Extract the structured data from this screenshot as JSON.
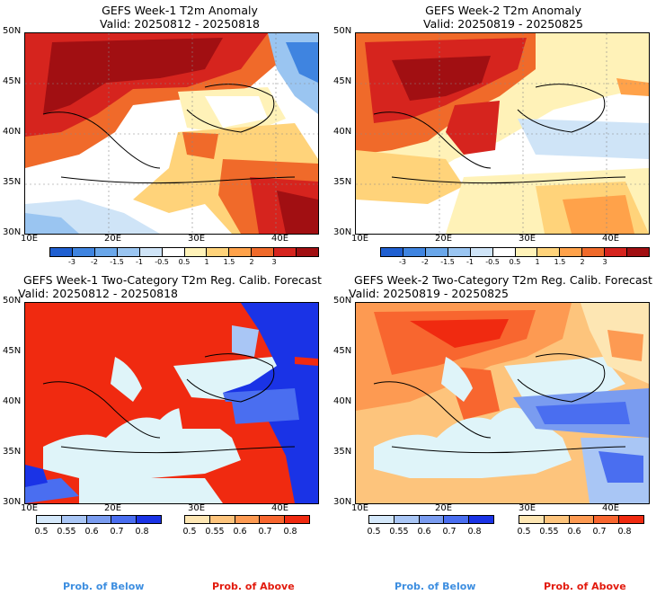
{
  "panels": [
    {
      "title": "GEFS Week-1 T2m Anomaly",
      "valid": "Valid: 20250812 - 20250818",
      "kind": "anom"
    },
    {
      "title": "GEFS Week-2 T2m Anomaly",
      "valid": "Valid: 20250819 - 20250825",
      "kind": "anom"
    },
    {
      "title": "GEFS Week-1 Two-Category T2m Reg. Calib. Forecast",
      "valid": "Valid: 20250812 - 20250818",
      "kind": "prob"
    },
    {
      "title": "GEFS Week-2 Two-Category T2m Reg. Calib. Forecast",
      "valid": "Valid: 20250819 - 20250825",
      "kind": "prob"
    }
  ],
  "lat_labels": [
    "50N",
    "45N",
    "40N",
    "35N",
    "30N"
  ],
  "lon_labels": [
    "10E",
    "20E",
    "30E",
    "40E"
  ],
  "anomaly_colorbar": {
    "ticks": [
      "-3",
      "-2",
      "-1.5",
      "-1",
      "-0.5",
      "0.5",
      "1",
      "1.5",
      "2",
      "3"
    ],
    "colors": [
      "#1f5fd1",
      "#3f84e0",
      "#6aa7ea",
      "#9ac5f1",
      "#cfe4f7",
      "#ffffff",
      "#fff2b8",
      "#ffd37a",
      "#ffa24a",
      "#f06a2a",
      "#d6241e",
      "#a10f12"
    ]
  },
  "prob_colorbar_below": {
    "ticks": [
      "0.5",
      "0.55",
      "0.6",
      "0.7",
      "0.8"
    ],
    "colors": [
      "#d4e8fa",
      "#a9c6f5",
      "#7a9cf0",
      "#4a6ef0",
      "#1a33e6"
    ]
  },
  "prob_colorbar_above": {
    "ticks": [
      "0.5",
      "0.55",
      "0.6",
      "0.7",
      "0.8"
    ],
    "colors": [
      "#fde6b3",
      "#fdc47c",
      "#fd9a52",
      "#f8662f",
      "#f02a10"
    ]
  },
  "labels": {
    "prob_below": "Prob. of Below",
    "prob_above": "Prob. of Above"
  },
  "colors": {
    "below_label": "#3d8ee0",
    "above_label": "#e21a0d",
    "sea_prob": "#dff4f9"
  }
}
